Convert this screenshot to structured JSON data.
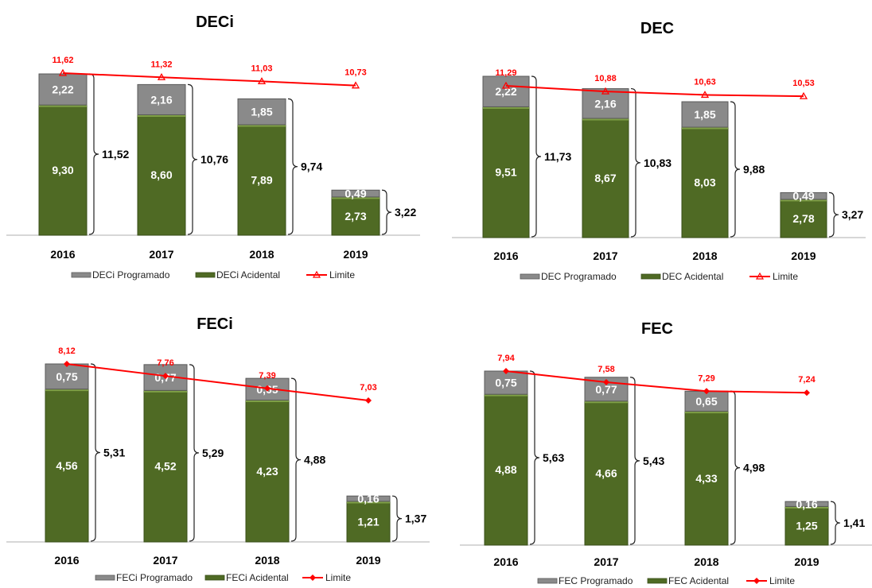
{
  "colors": {
    "programado": "#8a8a8a",
    "acidental": "#4f6a24",
    "limite": "#ff0000"
  },
  "chart_data": [
    {
      "type": "bar",
      "title": "DECi",
      "categories": [
        "2016",
        "2017",
        "2018",
        "2019"
      ],
      "stacked": true,
      "series": [
        {
          "name": "DECi Programado",
          "values": [
            2.22,
            2.16,
            1.85,
            0.49
          ],
          "labels": [
            "2,22",
            "2,16",
            "1,85",
            "0,49"
          ]
        },
        {
          "name": "DECi Acidental",
          "values": [
            9.3,
            8.6,
            7.89,
            2.73
          ],
          "labels": [
            "9,30",
            "8,60",
            "7,89",
            "2,73"
          ]
        },
        {
          "name": "Limite",
          "type": "line",
          "marker": "triangle",
          "values": [
            11.62,
            11.32,
            11.03,
            10.73
          ],
          "labels": [
            "11,62",
            "11,32",
            "11,03",
            "10,73"
          ]
        }
      ],
      "totals": [
        "11,52",
        "10,76",
        "9,74",
        "3,22"
      ],
      "ylim": [
        0,
        11.62
      ],
      "legend": "bottom"
    },
    {
      "type": "bar",
      "title": "DEC",
      "categories": [
        "2016",
        "2017",
        "2018",
        "2019"
      ],
      "stacked": true,
      "series": [
        {
          "name": "DEC Programado",
          "values": [
            2.22,
            2.16,
            1.85,
            0.49
          ],
          "labels": [
            "2,22",
            "2,16",
            "1,85",
            "0,49"
          ]
        },
        {
          "name": "DEC Acidental",
          "values": [
            9.51,
            8.67,
            8.03,
            2.78
          ],
          "labels": [
            "9,51",
            "8,67",
            "8,03",
            "2,78"
          ]
        },
        {
          "name": "Limite",
          "type": "line",
          "marker": "triangle",
          "values": [
            11.29,
            10.88,
            10.63,
            10.53
          ],
          "labels": [
            "11,29",
            "10,88",
            "10,63",
            "10,53"
          ]
        }
      ],
      "totals": [
        "11,73",
        "10,83",
        "9,88",
        "3,27"
      ],
      "ylim": [
        0,
        11.73
      ],
      "legend": "bottom"
    },
    {
      "type": "bar",
      "title": "FECi",
      "categories": [
        "2016",
        "2017",
        "2018",
        "2019"
      ],
      "stacked": true,
      "series": [
        {
          "name": "FECi Programado",
          "values": [
            0.75,
            0.77,
            0.65,
            0.16
          ],
          "labels": [
            "0,75",
            "0,77",
            "0,65",
            "0,16"
          ]
        },
        {
          "name": "FECi Acidental",
          "values": [
            4.56,
            4.52,
            4.23,
            1.21
          ],
          "labels": [
            "4,56",
            "4,52",
            "4,23",
            "1,21"
          ]
        },
        {
          "name": "Limite",
          "type": "line",
          "marker": "diamond",
          "values": [
            8.12,
            7.76,
            7.39,
            7.03
          ],
          "labels": [
            "8,12",
            "7,76",
            "7,39",
            "7,03"
          ]
        }
      ],
      "totals": [
        "5,31",
        "5,29",
        "4,88",
        "1,37"
      ],
      "ylim": [
        0,
        8.12
      ],
      "legend": "bottom"
    },
    {
      "type": "bar",
      "title": "FEC",
      "categories": [
        "2016",
        "2017",
        "2018",
        "2019"
      ],
      "stacked": true,
      "series": [
        {
          "name": "FEC Programado",
          "values": [
            0.75,
            0.77,
            0.65,
            0.16
          ],
          "labels": [
            "0,75",
            "0,77",
            "0,65",
            "0,16"
          ]
        },
        {
          "name": "FEC Acidental",
          "values": [
            4.88,
            4.66,
            4.33,
            1.25
          ],
          "labels": [
            "4,88",
            "4,66",
            "4,33",
            "1,25"
          ]
        },
        {
          "name": "Limite",
          "type": "line",
          "marker": "diamond",
          "values": [
            7.94,
            7.58,
            7.29,
            7.24
          ],
          "labels": [
            "7,94",
            "7,58",
            "7,29",
            "7,24"
          ]
        }
      ],
      "totals": [
        "5,63",
        "5,43",
        "4,98",
        "1,41"
      ],
      "ylim": [
        0,
        7.94
      ],
      "legend": "bottom"
    }
  ]
}
